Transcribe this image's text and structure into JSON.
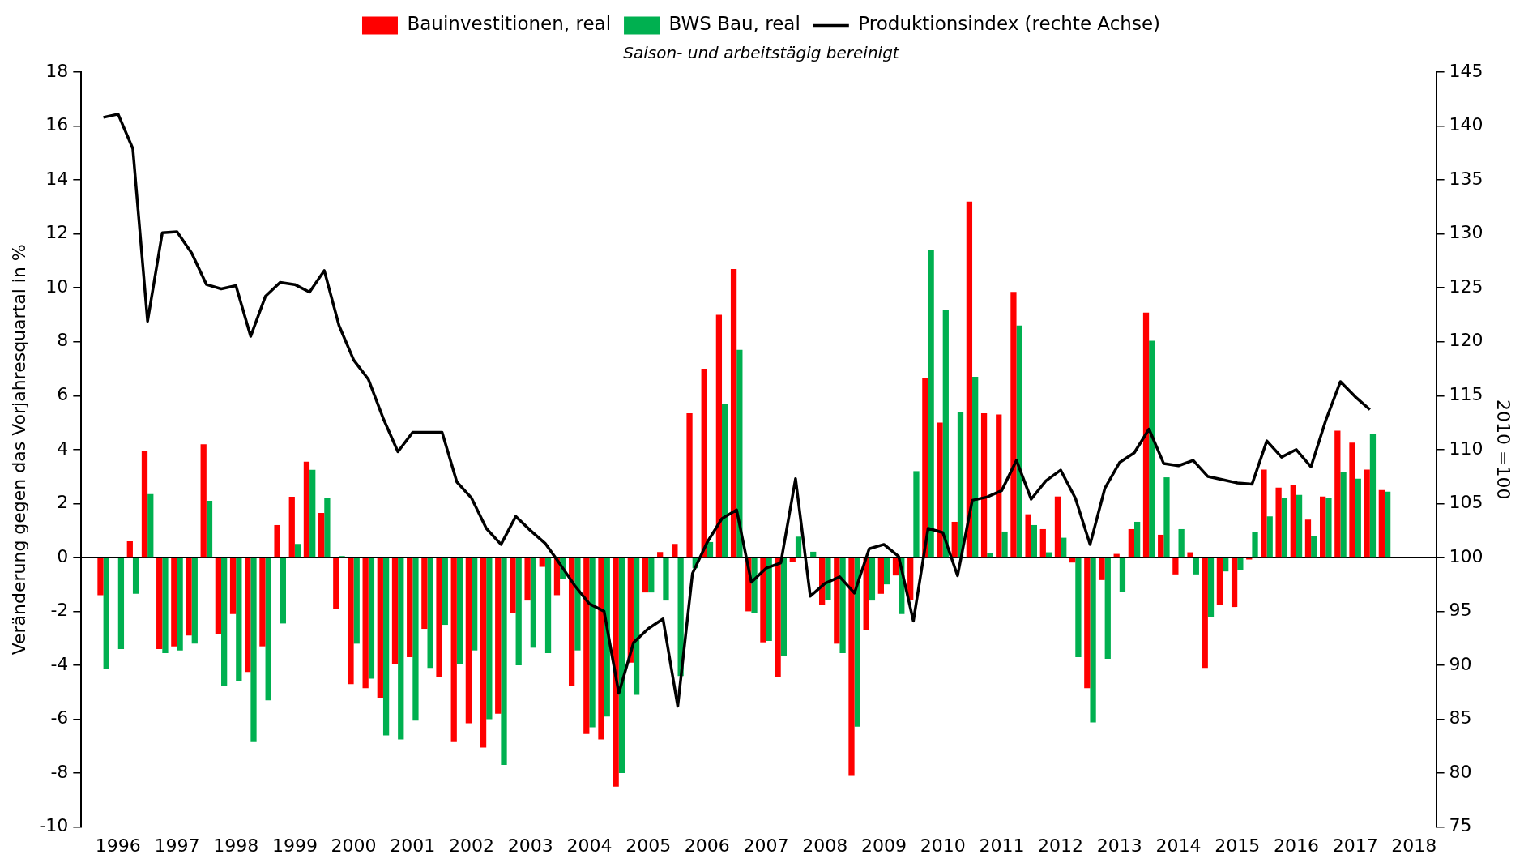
{
  "chart_data": {
    "type": "bar",
    "subtitle": "Saison- und arbeitstägig bereinigt",
    "ylabel": "Veränderung gegen das Vorjahresquartal in %",
    "y2label": "2010 =100",
    "legend": "top",
    "categories": [
      null,
      null,
      "1996",
      null,
      null,
      null,
      "1997",
      null,
      null,
      null,
      "1998",
      null,
      null,
      null,
      "1999",
      null,
      null,
      null,
      "2000",
      null,
      null,
      null,
      "2001",
      null,
      null,
      null,
      "2002",
      null,
      null,
      null,
      "2003",
      null,
      null,
      null,
      "2004",
      null,
      null,
      null,
      "2005",
      null,
      null,
      null,
      "2006",
      null,
      null,
      null,
      "2007",
      null,
      null,
      null,
      "2008",
      null,
      null,
      null,
      "2009",
      null,
      null,
      null,
      "2010",
      null,
      null,
      null,
      "2011",
      null,
      null,
      null,
      "2012",
      null,
      null,
      null,
      "2013",
      null,
      null,
      null,
      "2014",
      null,
      null,
      null,
      "2015",
      null,
      null,
      null,
      "2016",
      null,
      null,
      null,
      "2017",
      null,
      null,
      null,
      "2018",
      null
    ],
    "series": [
      {
        "name": "Bauinvestitionen, real",
        "color": "#ff0000",
        "values": [
          null,
          -1.4,
          0,
          0.6,
          3.95,
          -3.4,
          -3.3,
          -2.9,
          4.2,
          -2.85,
          -2.1,
          -4.25,
          -3.3,
          1.2,
          2.25,
          3.55,
          1.65,
          -1.9,
          -4.7,
          -4.85,
          -5.2,
          -3.95,
          -3.7,
          -2.65,
          -4.45,
          -6.85,
          -6.15,
          -7.05,
          -5.8,
          -2.05,
          -1.6,
          -0.35,
          -1.4,
          -4.75,
          -6.55,
          -6.75,
          -8.5,
          -3.9,
          -1.3,
          0.2,
          0.5,
          5.35,
          7.0,
          9.0,
          10.7,
          -2.0,
          -3.15,
          -4.45,
          -0.17,
          null,
          -1.77,
          -3.2,
          -8.1,
          -2.7,
          -1.35,
          -0.67,
          -1.57,
          6.65,
          5.0,
          1.32,
          13.2,
          5.35,
          5.3,
          9.85,
          1.6,
          1.05,
          2.26,
          -0.19,
          -4.85,
          -0.84,
          0.13,
          1.05,
          9.08,
          0.84,
          -0.63,
          0.19,
          -4.1,
          -1.77,
          -1.84,
          -0.08,
          3.26,
          2.59,
          2.7,
          1.4,
          2.26,
          4.7,
          4.26,
          3.26,
          2.5,
          null,
          null,
          null
        ]
      },
      {
        "name": "BWS Bau, real",
        "color": "#00b050",
        "values": [
          null,
          -4.15,
          -3.4,
          -1.35,
          2.35,
          -3.55,
          -3.45,
          -3.2,
          2.1,
          -4.75,
          -4.6,
          -6.85,
          -5.3,
          -2.45,
          0.5,
          3.25,
          2.2,
          0.05,
          -3.2,
          -4.5,
          -6.6,
          -6.75,
          -6.05,
          -4.1,
          -2.5,
          -3.95,
          -3.45,
          -6.0,
          -7.7,
          -4.0,
          -3.35,
          -3.55,
          -0.8,
          -3.45,
          -6.3,
          -5.9,
          -8.0,
          -5.1,
          -1.3,
          -1.6,
          -4.4,
          -0.4,
          0.57,
          5.7,
          7.7,
          -2.05,
          -3.1,
          -3.65,
          0.77,
          0.21,
          -1.57,
          -3.55,
          -6.28,
          -1.6,
          -1.0,
          -2.1,
          3.2,
          11.4,
          9.17,
          5.4,
          6.7,
          0.17,
          0.96,
          8.6,
          1.2,
          0.19,
          0.73,
          -3.7,
          -6.12,
          -3.76,
          -1.29,
          1.32,
          8.04,
          2.97,
          1.05,
          -0.63,
          -2.2,
          -0.52,
          -0.46,
          0.96,
          1.52,
          2.21,
          2.32,
          0.79,
          2.21,
          3.15,
          2.92,
          4.57,
          2.44,
          null,
          null,
          null
        ]
      },
      {
        "name": "Produktionsindex (rechte Achse)",
        "type": "line",
        "axis": "y2",
        "color": "#000000",
        "values": [
          null,
          140.8,
          141.1,
          137.9,
          121.9,
          130.1,
          130.2,
          128.2,
          125.3,
          124.9,
          125.2,
          120.5,
          124.2,
          125.5,
          125.3,
          124.6,
          126.6,
          121.5,
          118.3,
          116.5,
          112.9,
          109.8,
          111.6,
          111.6,
          111.6,
          107.0,
          105.5,
          102.7,
          101.2,
          103.8,
          102.5,
          101.3,
          99.4,
          97.4,
          95.7,
          95.0,
          87.4,
          92.1,
          93.4,
          94.3,
          86.2,
          98.5,
          101.4,
          103.6,
          104.4,
          97.7,
          99.0,
          99.5,
          107.3,
          96.4,
          97.6,
          98.2,
          96.7,
          100.8,
          101.2,
          100.1,
          94.1,
          102.7,
          102.3,
          98.3,
          105.3,
          105.6,
          106.2,
          109.0,
          105.4,
          107.1,
          108.1,
          105.5,
          101.2,
          106.4,
          108.8,
          109.7,
          111.9,
          108.7,
          108.5,
          109.0,
          107.5,
          107.2,
          106.9,
          106.8,
          110.8,
          109.3,
          110.0,
          108.4,
          112.7,
          116.3,
          114.9,
          113.7,
          null,
          null,
          null,
          null
        ]
      }
    ],
    "ylim": [
      -10,
      18
    ],
    "yticks": [
      -10,
      -8,
      -6,
      -4,
      -2,
      0,
      2,
      4,
      6,
      8,
      10,
      12,
      14,
      16,
      18
    ],
    "y2lim": [
      75,
      145
    ],
    "y2ticks": [
      75,
      80,
      85,
      90,
      95,
      100,
      105,
      110,
      115,
      120,
      125,
      130,
      135,
      140,
      145
    ]
  }
}
